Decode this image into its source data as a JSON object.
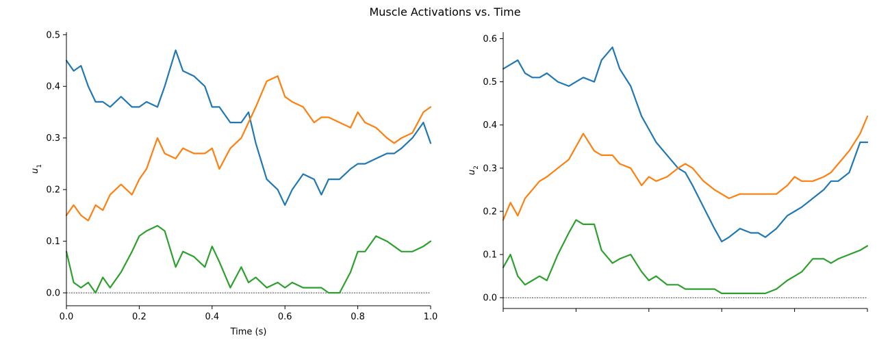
{
  "figure": {
    "title": "Muscle Activations vs. Time"
  },
  "chart_data": [
    {
      "type": "line",
      "xlabel": "Time (s)",
      "ylabel": "u",
      "ylabel_subscript": "1",
      "xlim": [
        0,
        1
      ],
      "ylim": [
        -0.025,
        0.505
      ],
      "xticks": [
        0.0,
        0.2,
        0.4,
        0.6,
        0.8,
        1.0
      ],
      "xtick_labels": [
        "0.0",
        "0.2",
        "0.4",
        "0.6",
        "0.8",
        "1.0"
      ],
      "yticks": [
        0.0,
        0.1,
        0.2,
        0.3,
        0.4,
        0.5
      ],
      "ytick_labels": [
        "0.0",
        "0.1",
        "0.2",
        "0.3",
        "0.4",
        "0.5"
      ],
      "reference_line_y": 0,
      "grid": false,
      "series": [
        {
          "color": "#1f77b4",
          "x": [
            0,
            0.02,
            0.04,
            0.06,
            0.08,
            0.1,
            0.12,
            0.15,
            0.18,
            0.2,
            0.22,
            0.25,
            0.27,
            0.3,
            0.32,
            0.35,
            0.38,
            0.4,
            0.42,
            0.45,
            0.48,
            0.5,
            0.52,
            0.55,
            0.58,
            0.6,
            0.62,
            0.65,
            0.68,
            0.7,
            0.72,
            0.75,
            0.78,
            0.8,
            0.82,
            0.85,
            0.88,
            0.9,
            0.92,
            0.95,
            0.98,
            1.0
          ],
          "y": [
            0.45,
            0.43,
            0.44,
            0.4,
            0.37,
            0.37,
            0.36,
            0.38,
            0.36,
            0.36,
            0.37,
            0.36,
            0.4,
            0.47,
            0.43,
            0.42,
            0.4,
            0.36,
            0.36,
            0.33,
            0.33,
            0.35,
            0.29,
            0.22,
            0.2,
            0.17,
            0.2,
            0.23,
            0.22,
            0.19,
            0.22,
            0.22,
            0.24,
            0.25,
            0.25,
            0.26,
            0.27,
            0.27,
            0.28,
            0.3,
            0.33,
            0.29
          ]
        },
        {
          "color": "#ff7f0e",
          "x": [
            0,
            0.02,
            0.04,
            0.06,
            0.08,
            0.1,
            0.12,
            0.15,
            0.18,
            0.2,
            0.22,
            0.25,
            0.27,
            0.3,
            0.32,
            0.35,
            0.38,
            0.4,
            0.42,
            0.45,
            0.48,
            0.5,
            0.52,
            0.55,
            0.58,
            0.6,
            0.62,
            0.65,
            0.68,
            0.7,
            0.72,
            0.75,
            0.78,
            0.8,
            0.82,
            0.85,
            0.88,
            0.9,
            0.92,
            0.95,
            0.98,
            1.0
          ],
          "y": [
            0.15,
            0.17,
            0.15,
            0.14,
            0.17,
            0.16,
            0.19,
            0.21,
            0.19,
            0.22,
            0.24,
            0.3,
            0.27,
            0.26,
            0.28,
            0.27,
            0.27,
            0.28,
            0.24,
            0.28,
            0.3,
            0.33,
            0.36,
            0.41,
            0.42,
            0.38,
            0.37,
            0.36,
            0.33,
            0.34,
            0.34,
            0.33,
            0.32,
            0.35,
            0.33,
            0.32,
            0.3,
            0.29,
            0.3,
            0.31,
            0.35,
            0.36
          ]
        },
        {
          "color": "#2ca02c",
          "x": [
            0,
            0.02,
            0.04,
            0.06,
            0.08,
            0.1,
            0.12,
            0.15,
            0.18,
            0.2,
            0.22,
            0.25,
            0.27,
            0.3,
            0.32,
            0.35,
            0.38,
            0.4,
            0.42,
            0.45,
            0.48,
            0.5,
            0.52,
            0.55,
            0.58,
            0.6,
            0.62,
            0.65,
            0.68,
            0.7,
            0.72,
            0.75,
            0.78,
            0.8,
            0.82,
            0.85,
            0.88,
            0.9,
            0.92,
            0.95,
            0.98,
            1.0
          ],
          "y": [
            0.08,
            0.02,
            0.01,
            0.02,
            0.0,
            0.03,
            0.01,
            0.04,
            0.08,
            0.11,
            0.12,
            0.13,
            0.12,
            0.05,
            0.08,
            0.07,
            0.05,
            0.09,
            0.06,
            0.01,
            0.05,
            0.02,
            0.03,
            0.01,
            0.02,
            0.01,
            0.02,
            0.01,
            0.01,
            0.01,
            0.0,
            0.0,
            0.04,
            0.08,
            0.08,
            0.11,
            0.1,
            0.09,
            0.08,
            0.08,
            0.09,
            0.1
          ]
        }
      ]
    },
    {
      "type": "line",
      "xlabel": "",
      "ylabel": "u",
      "ylabel_subscript": "2",
      "xlim": [
        0,
        1
      ],
      "ylim": [
        -0.025,
        0.615
      ],
      "xticks": [
        0.0,
        0.2,
        0.4,
        0.6,
        0.8,
        1.0
      ],
      "xtick_labels": [
        "",
        "",
        "",
        "",
        "",
        ""
      ],
      "yticks": [
        0.0,
        0.1,
        0.2,
        0.3,
        0.4,
        0.5,
        0.6
      ],
      "ytick_labels": [
        "0.0",
        "0.1",
        "0.2",
        "0.3",
        "0.4",
        "0.5",
        "0.6"
      ],
      "reference_line_y": 0,
      "grid": false,
      "series": [
        {
          "color": "#1f77b4",
          "x": [
            0,
            0.02,
            0.04,
            0.06,
            0.08,
            0.1,
            0.12,
            0.15,
            0.18,
            0.2,
            0.22,
            0.25,
            0.27,
            0.3,
            0.32,
            0.35,
            0.38,
            0.4,
            0.42,
            0.45,
            0.48,
            0.5,
            0.52,
            0.55,
            0.58,
            0.6,
            0.62,
            0.65,
            0.68,
            0.7,
            0.72,
            0.75,
            0.78,
            0.8,
            0.82,
            0.85,
            0.88,
            0.9,
            0.92,
            0.95,
            0.98,
            1.0
          ],
          "y": [
            0.53,
            0.54,
            0.55,
            0.52,
            0.51,
            0.51,
            0.52,
            0.5,
            0.49,
            0.5,
            0.51,
            0.5,
            0.55,
            0.58,
            0.53,
            0.49,
            0.42,
            0.39,
            0.36,
            0.33,
            0.3,
            0.29,
            0.26,
            0.21,
            0.16,
            0.13,
            0.14,
            0.16,
            0.15,
            0.15,
            0.14,
            0.16,
            0.19,
            0.2,
            0.21,
            0.23,
            0.25,
            0.27,
            0.27,
            0.29,
            0.36,
            0.36
          ]
        },
        {
          "color": "#ff7f0e",
          "x": [
            0,
            0.02,
            0.04,
            0.06,
            0.08,
            0.1,
            0.12,
            0.15,
            0.18,
            0.2,
            0.22,
            0.25,
            0.27,
            0.3,
            0.32,
            0.35,
            0.38,
            0.4,
            0.42,
            0.45,
            0.48,
            0.5,
            0.52,
            0.55,
            0.58,
            0.6,
            0.62,
            0.65,
            0.68,
            0.7,
            0.72,
            0.75,
            0.78,
            0.8,
            0.82,
            0.85,
            0.88,
            0.9,
            0.92,
            0.95,
            0.98,
            1.0
          ],
          "y": [
            0.18,
            0.22,
            0.19,
            0.23,
            0.25,
            0.27,
            0.28,
            0.3,
            0.32,
            0.35,
            0.38,
            0.34,
            0.33,
            0.33,
            0.31,
            0.3,
            0.26,
            0.28,
            0.27,
            0.28,
            0.3,
            0.31,
            0.3,
            0.27,
            0.25,
            0.24,
            0.23,
            0.24,
            0.24,
            0.24,
            0.24,
            0.24,
            0.26,
            0.28,
            0.27,
            0.27,
            0.28,
            0.29,
            0.31,
            0.34,
            0.38,
            0.42
          ]
        },
        {
          "color": "#2ca02c",
          "x": [
            0,
            0.02,
            0.04,
            0.06,
            0.08,
            0.1,
            0.12,
            0.15,
            0.18,
            0.2,
            0.22,
            0.25,
            0.27,
            0.3,
            0.32,
            0.35,
            0.38,
            0.4,
            0.42,
            0.45,
            0.48,
            0.5,
            0.52,
            0.55,
            0.58,
            0.6,
            0.62,
            0.65,
            0.68,
            0.7,
            0.72,
            0.75,
            0.78,
            0.8,
            0.82,
            0.85,
            0.88,
            0.9,
            0.92,
            0.95,
            0.98,
            1.0
          ],
          "y": [
            0.07,
            0.1,
            0.05,
            0.03,
            0.04,
            0.05,
            0.04,
            0.1,
            0.15,
            0.18,
            0.17,
            0.17,
            0.11,
            0.08,
            0.09,
            0.1,
            0.06,
            0.04,
            0.05,
            0.03,
            0.03,
            0.02,
            0.02,
            0.02,
            0.02,
            0.01,
            0.01,
            0.01,
            0.01,
            0.01,
            0.01,
            0.02,
            0.04,
            0.05,
            0.06,
            0.09,
            0.09,
            0.08,
            0.09,
            0.1,
            0.11,
            0.12
          ]
        }
      ]
    }
  ]
}
